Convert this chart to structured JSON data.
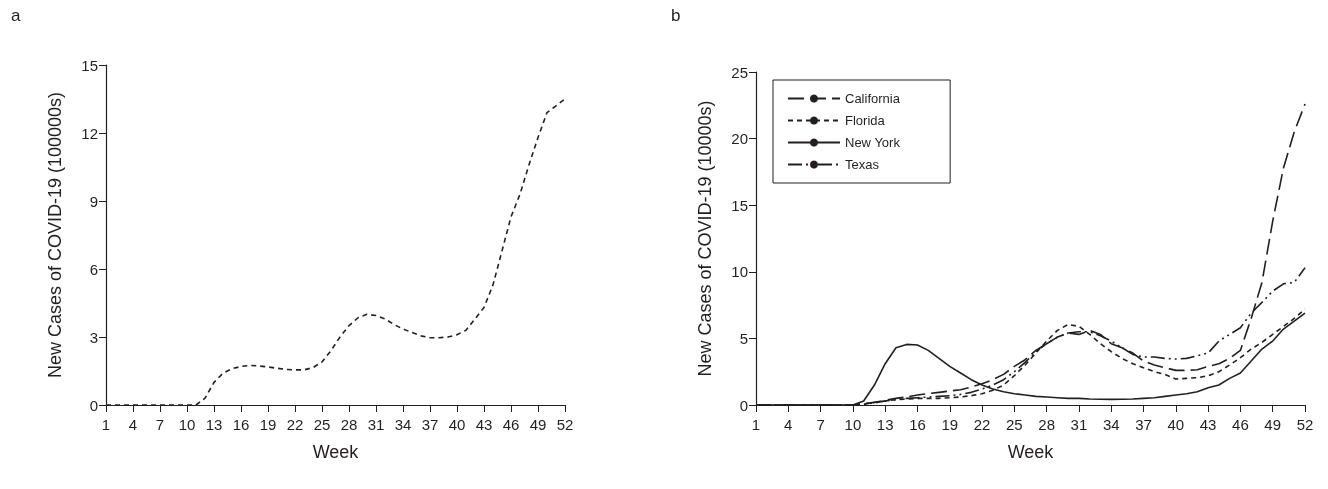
{
  "chart_data": [
    {
      "type": "line",
      "title": "a",
      "xlabel": "Week",
      "ylabel": "New Cases of COVID-19 (100000s)",
      "x": [
        1,
        2,
        3,
        4,
        5,
        6,
        7,
        8,
        9,
        10,
        11,
        12,
        13,
        14,
        15,
        16,
        17,
        18,
        19,
        20,
        21,
        22,
        23,
        24,
        25,
        26,
        27,
        28,
        29,
        30,
        31,
        32,
        33,
        34,
        35,
        36,
        37,
        38,
        39,
        40,
        41,
        42,
        43,
        44,
        45,
        46,
        47,
        48,
        49,
        50,
        51,
        52
      ],
      "series": [
        {
          "color": "#231f20",
          "line_style": "dashed",
          "values": [
            0,
            0,
            0,
            0,
            0,
            0,
            0,
            0,
            0,
            0,
            0,
            0.3,
            1.0,
            1.4,
            1.6,
            1.7,
            1.75,
            1.72,
            1.68,
            1.62,
            1.57,
            1.55,
            1.55,
            1.65,
            1.9,
            2.4,
            3.0,
            3.5,
            3.85,
            4.0,
            3.95,
            3.8,
            3.55,
            3.35,
            3.2,
            3.05,
            2.97,
            2.97,
            3.0,
            3.1,
            3.3,
            3.8,
            4.3,
            5.3,
            6.8,
            8.3,
            9.3,
            10.6,
            11.8,
            12.9,
            13.2,
            13.5
          ]
        }
      ],
      "xlim": [
        1,
        52
      ],
      "xticks": [
        1,
        4,
        7,
        10,
        13,
        16,
        19,
        22,
        25,
        28,
        31,
        34,
        37,
        40,
        43,
        46,
        49,
        52
      ],
      "ylim": [
        0,
        15
      ],
      "yticks": [
        0,
        3,
        6,
        9,
        12,
        15
      ],
      "grid": false,
      "legend": false,
      "marker": "none"
    },
    {
      "type": "line",
      "title": "b",
      "xlabel": "Week",
      "ylabel": "New Cases of COVID-19 (10000s)",
      "x": [
        1,
        2,
        3,
        4,
        5,
        6,
        7,
        8,
        9,
        10,
        11,
        12,
        13,
        14,
        15,
        16,
        17,
        18,
        19,
        20,
        21,
        22,
        23,
        24,
        25,
        26,
        27,
        28,
        29,
        30,
        31,
        32,
        33,
        34,
        35,
        36,
        37,
        38,
        39,
        40,
        41,
        42,
        43,
        44,
        45,
        46,
        47,
        48,
        49,
        50,
        51,
        52
      ],
      "series": [
        {
          "name": "California",
          "color": "#231f20",
          "line_style": "longdash",
          "values": [
            0,
            0,
            0,
            0,
            0,
            0,
            0,
            0,
            0,
            0,
            0.1,
            0.2,
            0.35,
            0.5,
            0.6,
            0.75,
            0.85,
            0.95,
            1.05,
            1.15,
            1.35,
            1.6,
            1.9,
            2.3,
            2.9,
            3.4,
            4.1,
            4.6,
            5.1,
            5.4,
            5.3,
            5.6,
            5.3,
            4.6,
            4.3,
            3.9,
            3.3,
            3.0,
            2.8,
            2.6,
            2.6,
            2.65,
            2.9,
            3.1,
            3.5,
            4.1,
            6.5,
            9.2,
            13.8,
            17.8,
            20.5,
            22.6
          ]
        },
        {
          "name": "Florida",
          "color": "#231f20",
          "line_style": "dashed",
          "values": [
            0,
            0,
            0,
            0,
            0,
            0,
            0,
            0,
            0,
            0,
            0.05,
            0.2,
            0.3,
            0.4,
            0.45,
            0.5,
            0.5,
            0.5,
            0.55,
            0.6,
            0.7,
            0.85,
            1.1,
            1.5,
            2.2,
            3.0,
            3.9,
            4.8,
            5.6,
            6.05,
            5.9,
            5.3,
            4.6,
            4.0,
            3.5,
            3.1,
            2.8,
            2.5,
            2.3,
            1.95,
            2.0,
            2.05,
            2.2,
            2.5,
            3.0,
            3.55,
            4.2,
            4.7,
            5.3,
            5.9,
            6.5,
            7.2
          ]
        },
        {
          "name": "New York",
          "color": "#231f20",
          "line_style": "solid",
          "values": [
            0,
            0,
            0,
            0,
            0,
            0,
            0,
            0,
            0,
            0,
            0.3,
            1.5,
            3.1,
            4.3,
            4.55,
            4.5,
            4.1,
            3.5,
            2.9,
            2.4,
            1.9,
            1.5,
            1.2,
            1.0,
            0.85,
            0.75,
            0.65,
            0.6,
            0.55,
            0.5,
            0.5,
            0.45,
            0.43,
            0.42,
            0.43,
            0.45,
            0.5,
            0.55,
            0.65,
            0.75,
            0.85,
            1.0,
            1.3,
            1.5,
            2.0,
            2.4,
            3.3,
            4.2,
            4.8,
            5.7,
            6.3,
            6.9
          ]
        },
        {
          "name": "Texas",
          "color": "#231f20",
          "line_style": "dashdot",
          "values": [
            0,
            0,
            0,
            0,
            0,
            0,
            0,
            0,
            0,
            0,
            0.05,
            0.15,
            0.3,
            0.4,
            0.5,
            0.55,
            0.6,
            0.65,
            0.7,
            0.8,
            0.95,
            1.2,
            1.5,
            1.9,
            2.5,
            3.2,
            4.0,
            4.6,
            5.1,
            5.4,
            5.5,
            5.5,
            5.2,
            4.8,
            4.3,
            3.8,
            3.6,
            3.6,
            3.5,
            3.45,
            3.5,
            3.7,
            3.9,
            4.8,
            5.3,
            5.8,
            6.9,
            7.7,
            8.55,
            9.1,
            9.2,
            10.3
          ]
        }
      ],
      "xlim": [
        1,
        52
      ],
      "xticks": [
        1,
        4,
        7,
        10,
        13,
        16,
        19,
        22,
        25,
        28,
        31,
        34,
        37,
        40,
        43,
        46,
        49,
        52
      ],
      "ylim": [
        0,
        25
      ],
      "yticks": [
        0,
        5,
        10,
        15,
        20,
        25
      ],
      "grid": false,
      "legend": "top left",
      "marker": "none"
    }
  ]
}
